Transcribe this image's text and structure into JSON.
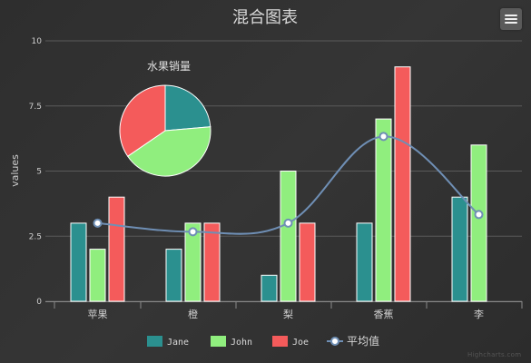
{
  "title": "混合图表",
  "credits": "Highcharts.com",
  "colors": {
    "background": "#303030",
    "grid": "#5a5a5a",
    "axis_text": "#d0d0d0",
    "title": "#d8d8d8",
    "spline": "#6f8fb5",
    "marker_fill": "#ffffff"
  },
  "chart_data": {
    "type": "bar",
    "title": "混合图表",
    "xlabel": "",
    "ylabel": "values",
    "ylim": [
      0,
      10
    ],
    "yticks": [
      "0",
      "2.5",
      "5",
      "7.5",
      "10"
    ],
    "ytick_values": [
      0,
      2.5,
      5,
      7.5,
      10
    ],
    "grid": true,
    "legend_position": "bottom-center",
    "categories": [
      "苹果",
      "橙",
      "梨",
      "香蕉",
      "李"
    ],
    "series": [
      {
        "name": "Jane",
        "type": "column",
        "color": "#2b908f",
        "values": [
          3,
          2,
          1,
          3,
          4
        ]
      },
      {
        "name": "John",
        "type": "column",
        "color": "#90ee7e",
        "values": [
          2,
          3,
          5,
          7,
          6
        ]
      },
      {
        "name": "Joe",
        "type": "column",
        "color": "#f45b5b",
        "values": [
          4,
          3,
          3,
          9,
          0
        ]
      },
      {
        "name": "平均值",
        "type": "spline",
        "color": "#6f8fb5",
        "values": [
          3,
          2.67,
          3,
          6.33,
          3.33
        ]
      }
    ],
    "pie": {
      "title": "水果销量",
      "slices": [
        {
          "name": "Jane",
          "value": 13,
          "color": "#2b908f"
        },
        {
          "name": "John",
          "value": 23,
          "color": "#90ee7e"
        },
        {
          "name": "Joe",
          "value": 19,
          "color": "#f45b5b"
        }
      ]
    }
  }
}
